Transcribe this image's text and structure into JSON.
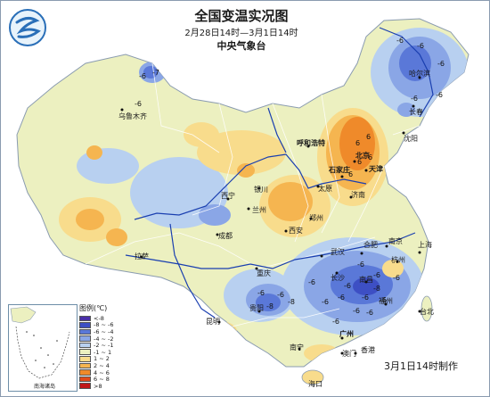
{
  "header": {
    "title": "全国变温实况图",
    "subtitle": "2月28日14时—3月1日14时",
    "organization": "中央气象台"
  },
  "footer": {
    "made_label": "3月1日14时制作"
  },
  "legend": {
    "title": "图例(℃)",
    "items": [
      {
        "label": "<-8",
        "color": "#4a2fa8"
      },
      {
        "label": "-8 ~ -6",
        "color": "#3d4fc4"
      },
      {
        "label": "-6 ~ -4",
        "color": "#5a78d8"
      },
      {
        "label": "-4 ~ -2",
        "color": "#8aa6e6"
      },
      {
        "label": "-2 ~ -1",
        "color": "#b8d0f0"
      },
      {
        "label": "-1 ~ 1",
        "color": "#ecf0c0"
      },
      {
        "label": "1 ~ 2",
        "color": "#f8dc8c"
      },
      {
        "label": "2 ~ 4",
        "color": "#f5b550"
      },
      {
        "label": "4 ~ 6",
        "color": "#ef8a2a"
      },
      {
        "label": "6 ~ 8",
        "color": "#e04a1a"
      },
      {
        "label": ">8",
        "color": "#c01818"
      }
    ]
  },
  "inset": {
    "label": "南海诸岛"
  },
  "cities": [
    {
      "name": "乌鲁木齐",
      "bold": false
    },
    {
      "name": "哈尔滨",
      "bold": false
    },
    {
      "name": "长春",
      "bold": false
    },
    {
      "name": "沈阳",
      "bold": false
    },
    {
      "name": "呼和浩特",
      "bold": true
    },
    {
      "name": "北京",
      "bold": true
    },
    {
      "name": "天津",
      "bold": true
    },
    {
      "name": "石家庄",
      "bold": true
    },
    {
      "name": "太原",
      "bold": false
    },
    {
      "name": "济南",
      "bold": false
    },
    {
      "name": "银川",
      "bold": false
    },
    {
      "name": "西宁",
      "bold": false
    },
    {
      "name": "兰州",
      "bold": false
    },
    {
      "name": "郑州",
      "bold": false
    },
    {
      "name": "西安",
      "bold": false
    },
    {
      "name": "拉萨",
      "bold": false
    },
    {
      "name": "成都",
      "bold": false
    },
    {
      "name": "重庆",
      "bold": false
    },
    {
      "name": "武汉",
      "bold": false
    },
    {
      "name": "合肥",
      "bold": false
    },
    {
      "name": "南京",
      "bold": false
    },
    {
      "name": "上海",
      "bold": false
    },
    {
      "name": "杭州",
      "bold": false
    },
    {
      "name": "南昌",
      "bold": false
    },
    {
      "name": "长沙",
      "bold": false
    },
    {
      "name": "贵阳",
      "bold": false
    },
    {
      "name": "昆明",
      "bold": false
    },
    {
      "name": "福州",
      "bold": false
    },
    {
      "name": "台北",
      "bold": false
    },
    {
      "name": "南宁",
      "bold": false
    },
    {
      "name": "广州",
      "bold": true
    },
    {
      "name": "香港",
      "bold": false
    },
    {
      "name": "澳门",
      "bold": false
    },
    {
      "name": "海口",
      "bold": false
    }
  ],
  "value_labels": [
    "-6",
    "-7",
    "-6",
    "-6",
    "-6",
    "-6",
    "-6",
    "-6",
    "6",
    "6",
    "6",
    "6",
    "6",
    "-6",
    "-6",
    "-6",
    "-6",
    "-6",
    "-6",
    "-6",
    "-8",
    "-6",
    "-6",
    "-8",
    "-6",
    "-6",
    "-6",
    "-6",
    "-6",
    "-8"
  ],
  "colors": {
    "border": "#8a9bb0",
    "river": "#1a3fb0",
    "boundary": "#ffffff"
  }
}
